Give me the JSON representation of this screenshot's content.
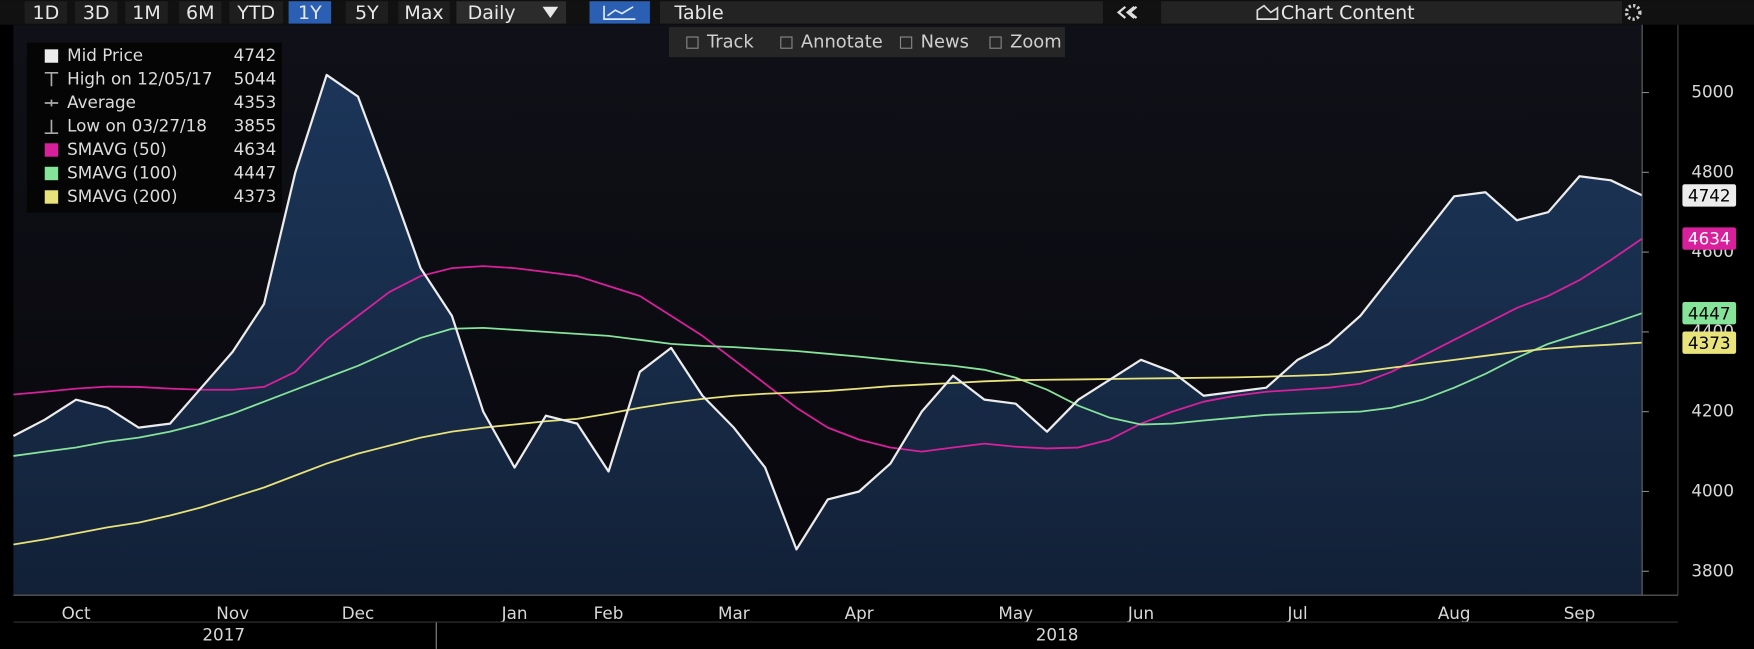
{
  "toolbar": {
    "ranges": [
      "1D",
      "3D",
      "1M",
      "6M",
      "YTD",
      "1Y",
      "5Y",
      "Max"
    ],
    "selected": 5,
    "frequency": "Daily",
    "table": "Table",
    "chart_content": "Chart Content",
    "tools": [
      "Track",
      "Annotate",
      "News",
      "Zoom"
    ]
  },
  "chart_data": {
    "type": "line",
    "categories": [
      null,
      null,
      "Oct",
      null,
      null,
      null,
      null,
      "Nov",
      null,
      null,
      null,
      "Dec",
      null,
      null,
      null,
      null,
      "Jan",
      null,
      null,
      "Feb",
      null,
      null,
      null,
      "Mar",
      null,
      null,
      null,
      "Apr",
      null,
      null,
      null,
      null,
      "May",
      null,
      null,
      null,
      "Jun",
      null,
      null,
      null,
      null,
      "Jul",
      null,
      null,
      null,
      null,
      "Aug",
      null,
      null,
      null,
      "Sep",
      null,
      null
    ],
    "years": [
      "2017",
      "2018"
    ],
    "series": [
      {
        "name": "Mid Price",
        "color": "#ececec",
        "fill": "#1b3559",
        "values": [
          4139,
          4180,
          4230,
          4210,
          4160,
          4170,
          4260,
          4350,
          4470,
          4800,
          5044,
          4990,
          4780,
          4560,
          4440,
          4200,
          4060,
          4190,
          4170,
          4050,
          4300,
          4360,
          4240,
          4160,
          4060,
          3855,
          3980,
          4000,
          4070,
          4200,
          4290,
          4230,
          4220,
          4150,
          4230,
          4280,
          4330,
          4300,
          4240,
          4250,
          4260,
          4330,
          4370,
          4440,
          4540,
          4640,
          4740,
          4750,
          4680,
          4700,
          4790,
          4780,
          4742
        ]
      },
      {
        "name": "SMAVG (50)",
        "color": "#d8209c",
        "values": [
          4243,
          4250,
          4258,
          4263,
          4262,
          4258,
          4255,
          4255,
          4262,
          4300,
          4380,
          4440,
          4500,
          4540,
          4560,
          4565,
          4560,
          4550,
          4540,
          4515,
          4490,
          4440,
          4390,
          4330,
          4270,
          4210,
          4160,
          4130,
          4110,
          4100,
          4110,
          4120,
          4112,
          4108,
          4110,
          4130,
          4170,
          4200,
          4225,
          4240,
          4250,
          4255,
          4260,
          4270,
          4300,
          4340,
          4380,
          4420,
          4460,
          4490,
          4530,
          4580,
          4634
        ]
      },
      {
        "name": "SMAVG (100)",
        "color": "#86e39a",
        "values": [
          4089,
          4100,
          4110,
          4125,
          4135,
          4150,
          4170,
          4195,
          4225,
          4255,
          4285,
          4315,
          4350,
          4385,
          4408,
          4410,
          4405,
          4400,
          4395,
          4390,
          4380,
          4370,
          4365,
          4362,
          4357,
          4352,
          4345,
          4338,
          4330,
          4322,
          4315,
          4305,
          4285,
          4255,
          4215,
          4185,
          4168,
          4170,
          4178,
          4185,
          4192,
          4195,
          4198,
          4200,
          4210,
          4230,
          4260,
          4295,
          4335,
          4370,
          4395,
          4420,
          4447
        ]
      },
      {
        "name": "SMAVG (200)",
        "color": "#e8e37a",
        "values": [
          3867,
          3880,
          3895,
          3910,
          3922,
          3940,
          3960,
          3985,
          4010,
          4040,
          4070,
          4095,
          4115,
          4135,
          4150,
          4160,
          4168,
          4176,
          4182,
          4195,
          4210,
          4222,
          4232,
          4240,
          4245,
          4248,
          4252,
          4258,
          4264,
          4268,
          4272,
          4276,
          4279,
          4280,
          4281,
          4282,
          4283,
          4284,
          4285,
          4286,
          4288,
          4290,
          4293,
          4300,
          4310,
          4320,
          4330,
          4340,
          4350,
          4358,
          4364,
          4368,
          4373
        ]
      }
    ],
    "stats": {
      "high": {
        "label": "High on 12/05/17",
        "index": 10
      },
      "average": {
        "label": "Average",
        "value": 4353
      },
      "low": {
        "label": "Low on 03/27/18",
        "index": 25
      }
    },
    "ylim": [
      3740,
      5170
    ],
    "yticks": [
      3800,
      4000,
      4200,
      4400,
      4600,
      4800,
      5000
    ],
    "y_axis_side": "right",
    "legend": "upper left",
    "grid": false
  }
}
